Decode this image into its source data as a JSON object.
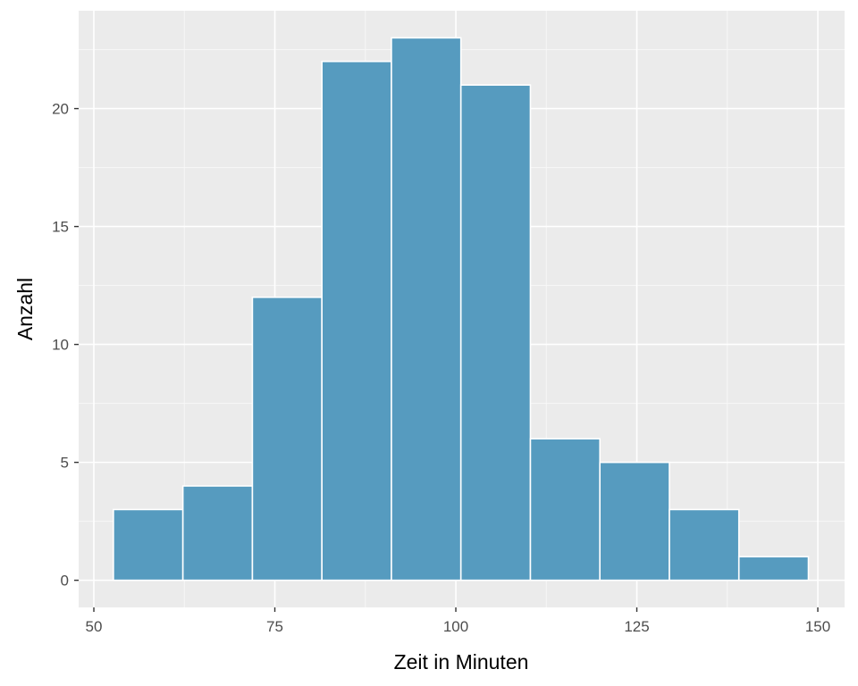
{
  "chart_data": {
    "type": "bar",
    "subtype": "histogram",
    "title": "",
    "xlabel": "Zeit in Minuten",
    "ylabel": "Anzahl",
    "xlim": [
      47.9,
      153.7
    ],
    "ylim": [
      -1.15,
      24.15
    ],
    "x_ticks": [
      50,
      75,
      100,
      125,
      150
    ],
    "y_ticks": [
      0,
      5,
      10,
      15,
      20
    ],
    "grid": true,
    "legend": "none",
    "bins": [
      {
        "x0": 52.7,
        "x1": 62.3,
        "count": 3
      },
      {
        "x0": 62.3,
        "x1": 71.9,
        "count": 4
      },
      {
        "x0": 71.9,
        "x1": 81.5,
        "count": 12
      },
      {
        "x0": 81.5,
        "x1": 91.1,
        "count": 22
      },
      {
        "x0": 91.1,
        "x1": 100.7,
        "count": 23
      },
      {
        "x0": 100.7,
        "x1": 110.3,
        "count": 21
      },
      {
        "x0": 110.3,
        "x1": 119.9,
        "count": 6
      },
      {
        "x0": 119.9,
        "x1": 129.5,
        "count": 5
      },
      {
        "x0": 129.5,
        "x1": 139.1,
        "count": 3
      },
      {
        "x0": 139.1,
        "x1": 148.7,
        "count": 1
      }
    ],
    "colors": {
      "panel": "#ebebeb",
      "grid_major": "#ffffff",
      "grid_minor": "#f7f7f7",
      "bar_fill": "#569bbf",
      "bar_stroke": "#ffffff",
      "tick_text": "#4d4d4d",
      "axis_tick": "#333333"
    }
  }
}
